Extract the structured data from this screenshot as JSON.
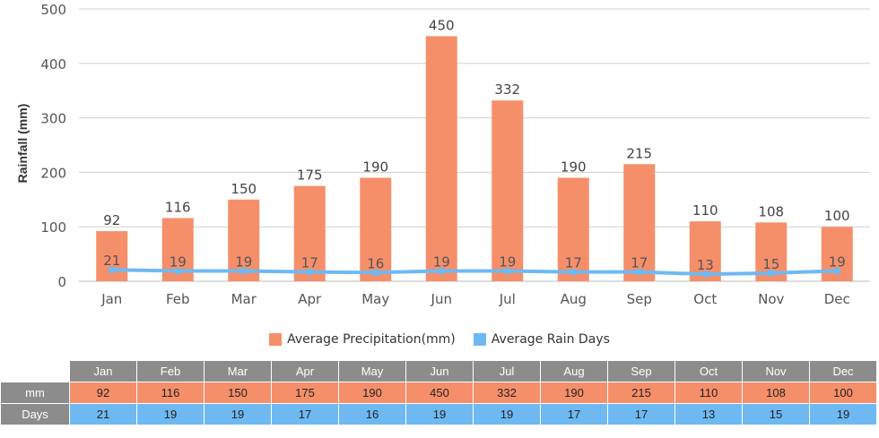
{
  "chart_data": {
    "type": "bar",
    "categories": [
      "Jan",
      "Feb",
      "Mar",
      "Apr",
      "May",
      "Jun",
      "Jul",
      "Aug",
      "Sep",
      "Oct",
      "Nov",
      "Dec"
    ],
    "series": [
      {
        "name": "Average Precipitation(mm)",
        "type": "bar",
        "color": "#f58f6a",
        "values": [
          92,
          116,
          150,
          175,
          190,
          450,
          332,
          190,
          215,
          110,
          108,
          100
        ]
      },
      {
        "name": "Average Rain Days",
        "type": "line",
        "color": "#6fb9f2",
        "values": [
          21,
          19,
          19,
          17,
          16,
          19,
          19,
          17,
          17,
          13,
          15,
          19
        ]
      }
    ],
    "ylabel": "Rainfall (mm)",
    "ylim": [
      0,
      500
    ],
    "yticks": [
      0,
      100,
      200,
      300,
      400,
      500
    ],
    "grid": true,
    "legend_position": "bottom"
  },
  "table": {
    "row_labels": [
      "mm",
      "Days"
    ]
  }
}
